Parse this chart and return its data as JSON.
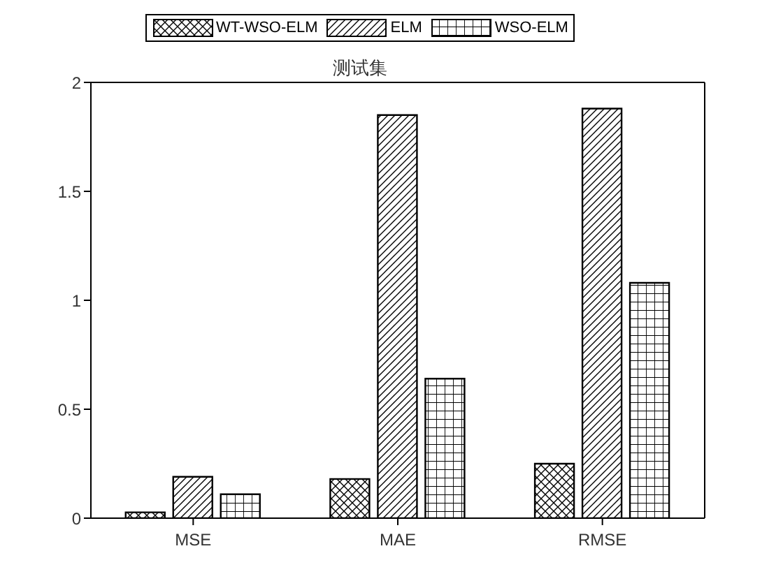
{
  "chart_data": {
    "type": "bar",
    "title": "测试集",
    "categories": [
      "MSE",
      "MAE",
      "RMSE"
    ],
    "series": [
      {
        "name": "WT-WSO-ELM",
        "color": "#000000",
        "values": [
          0.027,
          0.18,
          0.25
        ]
      },
      {
        "name": "ELM",
        "color": "#000000",
        "values": [
          0.19,
          1.85,
          1.88
        ]
      },
      {
        "name": "WSO-ELM",
        "color": "#000000",
        "values": [
          0.11,
          0.64,
          1.08
        ]
      }
    ],
    "ylim": [
      0,
      2
    ],
    "yticks": [
      0,
      0.5,
      1,
      1.5,
      2
    ],
    "legend": "top"
  }
}
